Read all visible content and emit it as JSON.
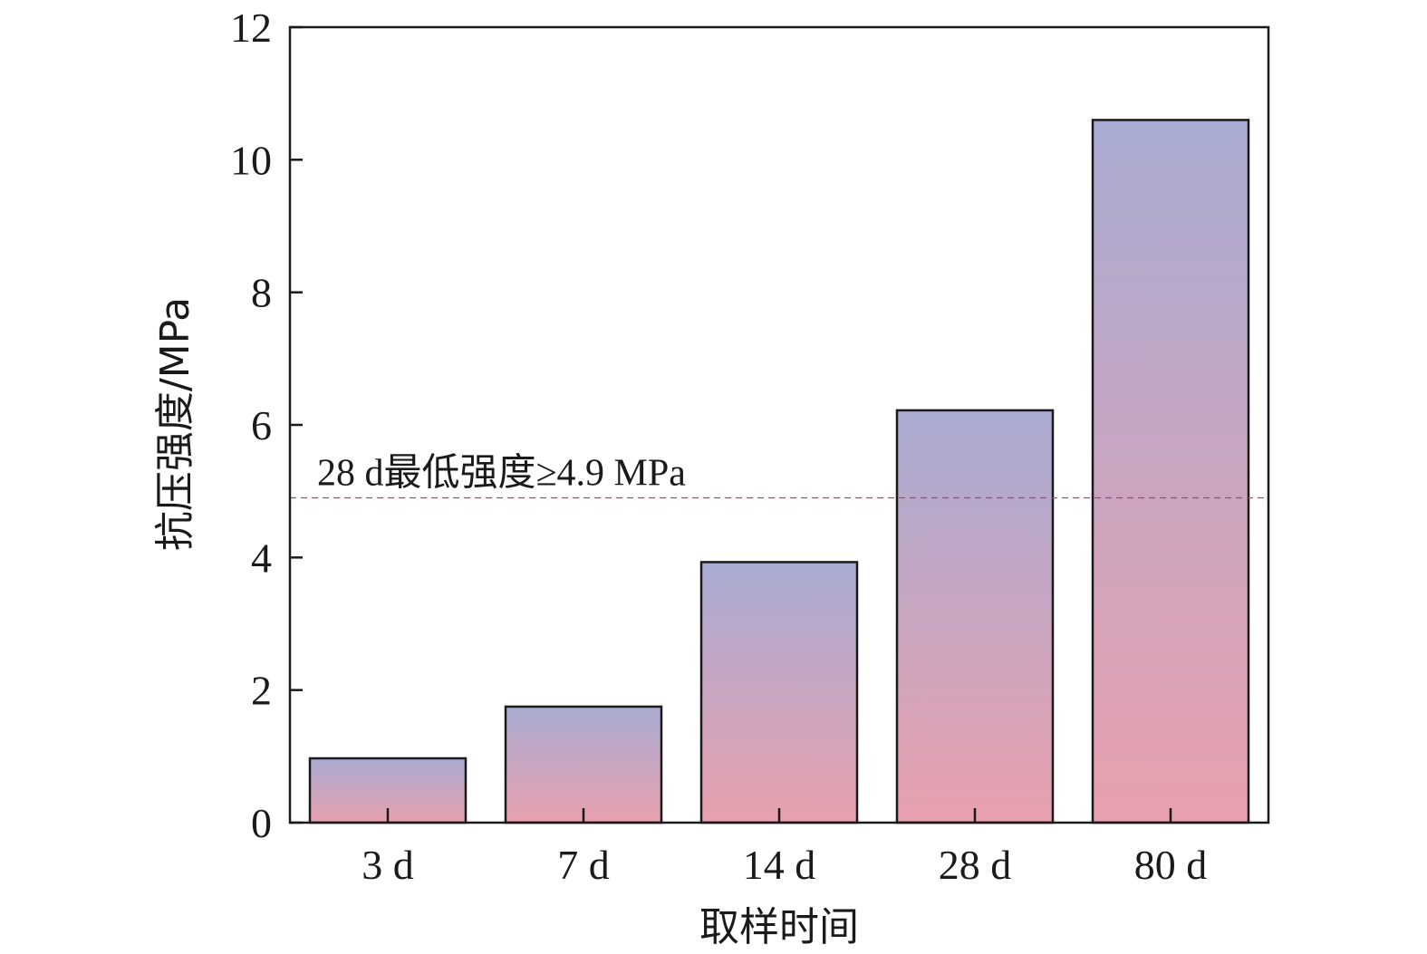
{
  "chart_data": {
    "type": "bar",
    "title": "",
    "xlabel": "取样时间",
    "ylabel": "抗压强度/MPa",
    "categories": [
      "3 d",
      "7 d",
      "14 d",
      "28 d",
      "80 d"
    ],
    "values": [
      0.97,
      1.75,
      3.93,
      6.22,
      10.6
    ],
    "ylim": [
      0,
      12
    ],
    "yticks": [
      0,
      2,
      4,
      6,
      8,
      10,
      12
    ],
    "grid": false,
    "legend": "none",
    "reference_line": {
      "value": 4.9,
      "label": "28 d最低强度≥4.9 MPa",
      "style": "dashed",
      "color": "#b0456a"
    },
    "colors": {
      "bar_top": "#a9abd2",
      "bar_bottom": "#e8a0ae",
      "bar_outline": "#1a1a1a",
      "axis": "#1a1a1a"
    }
  }
}
